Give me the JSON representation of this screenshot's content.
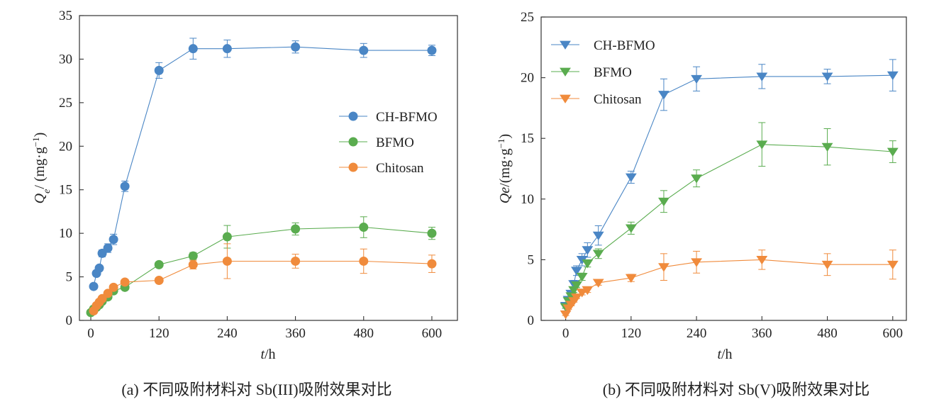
{
  "chart_data": [
    {
      "type": "line",
      "xlabel_italic": "t",
      "xlabel_unit": "/h",
      "ylabel_sym": "Q",
      "ylabel_sub": "e",
      "ylabel_unit": "/ (mg·g",
      "ylabel_exp": "−1",
      "ylabel_close": ")",
      "xlim": [
        -20,
        645
      ],
      "ylim": [
        0,
        35
      ],
      "xticks": [
        0,
        120,
        240,
        360,
        480,
        600
      ],
      "yticks": [
        0,
        5,
        10,
        15,
        20,
        25,
        30,
        35
      ],
      "marker": "circle",
      "legend": "center-right",
      "caption": "(a)  不同吸附材料对 Sb(III)吸附效果对比",
      "series": [
        {
          "name": "CH-BFMO",
          "color": "#4a86c5",
          "x": [
            5,
            10,
            15,
            20,
            30,
            40,
            60,
            120,
            180,
            240,
            360,
            480,
            600
          ],
          "y": [
            3.9,
            5.4,
            6.0,
            7.7,
            8.3,
            9.3,
            15.4,
            28.7,
            31.2,
            31.2,
            31.4,
            31.0,
            31.0
          ],
          "err": [
            0.3,
            0.3,
            0.3,
            0.4,
            0.5,
            0.6,
            0.6,
            0.9,
            1.2,
            1.0,
            0.7,
            0.8,
            0.6
          ]
        },
        {
          "name": "BFMO",
          "color": "#5aac4f",
          "x": [
            0,
            5,
            10,
            15,
            20,
            30,
            40,
            60,
            120,
            180,
            240,
            360,
            480,
            600
          ],
          "y": [
            0.9,
            1.3,
            1.5,
            1.8,
            2.2,
            2.7,
            3.4,
            3.8,
            6.4,
            7.4,
            9.6,
            10.5,
            10.7,
            10.0
          ],
          "err": [
            0.1,
            0.1,
            0.1,
            0.1,
            0.1,
            0.2,
            0.2,
            0.2,
            0.3,
            0.4,
            1.3,
            0.7,
            1.2,
            0.7
          ]
        },
        {
          "name": "Chitosan",
          "color": "#f08b3c",
          "x": [
            5,
            10,
            15,
            20,
            30,
            40,
            60,
            120,
            180,
            240,
            360,
            480,
            600
          ],
          "y": [
            1.1,
            1.7,
            2.1,
            2.5,
            3.1,
            3.8,
            4.4,
            4.6,
            6.4,
            6.8,
            6.8,
            6.8,
            6.5
          ],
          "err": [
            0.1,
            0.1,
            0.1,
            0.1,
            0.2,
            0.2,
            0.2,
            0.3,
            0.5,
            2.0,
            0.8,
            1.4,
            1.0
          ]
        }
      ]
    },
    {
      "type": "line",
      "xlabel_italic": "t",
      "xlabel_unit": "/h",
      "ylabel_sym": "Qe",
      "ylabel_sub": "",
      "ylabel_unit": "/(mg·g",
      "ylabel_exp": "−1",
      "ylabel_close": ")",
      "xlim": [
        -45,
        625
      ],
      "ylim": [
        0,
        25
      ],
      "xticks": [
        0,
        120,
        240,
        360,
        480,
        600
      ],
      "yticks": [
        0,
        5,
        10,
        15,
        20,
        25
      ],
      "marker": "triangle-down",
      "legend": "top-left",
      "caption": "(b)  不同吸附材料对 Sb(V)吸附效果对比",
      "series": [
        {
          "name": "CH-BFMO",
          "color": "#4a86c5",
          "x": [
            0,
            5,
            10,
            15,
            20,
            30,
            40,
            60,
            120,
            180,
            240,
            360,
            480,
            600
          ],
          "y": [
            1.2,
            1.7,
            2.2,
            3.0,
            4.1,
            5.0,
            5.8,
            7.0,
            11.8,
            18.6,
            19.9,
            20.1,
            20.1,
            20.2
          ],
          "err": [
            0.2,
            0.2,
            0.2,
            0.3,
            0.4,
            0.5,
            0.6,
            0.8,
            0.5,
            1.3,
            1.0,
            1.0,
            0.6,
            1.3
          ]
        },
        {
          "name": "BFMO",
          "color": "#5aac4f",
          "x": [
            0,
            5,
            10,
            15,
            20,
            30,
            40,
            60,
            120,
            180,
            240,
            360,
            480,
            600
          ],
          "y": [
            1.1,
            1.6,
            2.0,
            2.5,
            2.9,
            3.6,
            4.7,
            5.5,
            7.6,
            9.8,
            11.7,
            14.5,
            14.3,
            13.9
          ],
          "err": [
            0.1,
            0.1,
            0.2,
            0.2,
            0.2,
            0.3,
            0.3,
            0.4,
            0.5,
            0.9,
            0.7,
            1.8,
            1.5,
            0.9
          ]
        },
        {
          "name": "Chitosan",
          "color": "#f08b3c",
          "x": [
            0,
            5,
            10,
            15,
            20,
            30,
            40,
            60,
            120,
            180,
            240,
            360,
            480,
            600
          ],
          "y": [
            0.5,
            1.0,
            1.3,
            1.6,
            1.9,
            2.3,
            2.5,
            3.1,
            3.5,
            4.4,
            4.8,
            5.0,
            4.6,
            4.6
          ],
          "err": [
            0.1,
            0.1,
            0.1,
            0.1,
            0.1,
            0.2,
            0.2,
            0.2,
            0.3,
            1.1,
            0.9,
            0.8,
            0.9,
            1.2
          ]
        }
      ]
    }
  ]
}
